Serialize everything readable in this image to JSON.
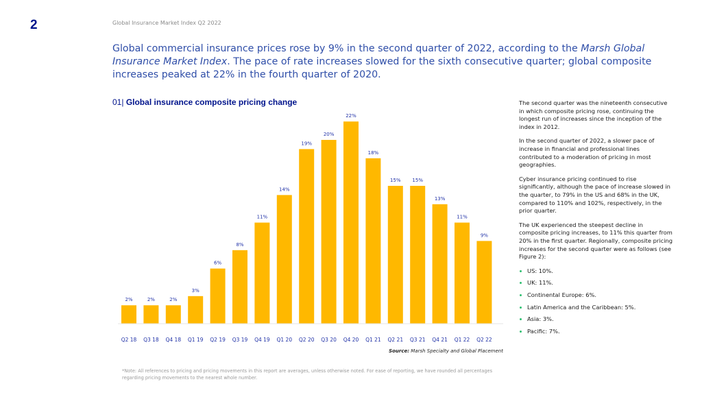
{
  "page": {
    "number": "2",
    "running_head": "Global Insurance Market Index Q2 2022",
    "lead": {
      "part1": "Global commercial insurance prices rose by 9% in the second quarter of 2022, according to the ",
      "italic": "Marsh Global Insurance Market Index",
      "part2": ". The pace of rate increases slowed for the sixth consecutive quarter; global composite increases peaked at 22% in the fourth quarter of 2020."
    },
    "figure": {
      "number": "01|",
      "title": "Global insurance composite pricing change",
      "source_label": "Source:",
      "source_text": " Marsh Specialty and Global Placement"
    },
    "sidebar": {
      "paragraphs": [
        "The second quarter was the nineteenth consecutive in which composite pricing rose, continuing the longest run of increases since the inception of the index in 2012.",
        "In the second quarter of 2022, a slower pace of increase in financial and professional lines contributed to a moderation of pricing in most geographies.",
        "Cyber insurance pricing continued to rise significantly, although the pace of increase slowed in the quarter, to 79% in the US and 68% in the UK, compared to 110% and 102%, respectively, in the prior quarter.",
        "The UK experienced the steepest decline in composite pricing increases, to 11% this quarter from 20% in the first quarter. Regionally, composite pricing increases for the second quarter were as follows (see Figure 2):"
      ],
      "bullets": [
        "US: 10%.",
        "UK: 11%.",
        "Continental Europe: 6%.",
        "Latin America and the Caribbean: 5%.",
        "Asia: 3%.",
        "Pacific: 7%."
      ]
    },
    "footnote": "*Note: All references to pricing and pricing movements in this report are averages, unless otherwise noted. For ease of reporting, we have rounded all percentages regarding pricing movements to the nearest whole number."
  },
  "colors": {
    "bar": "#FFB800",
    "label": "#2233a8",
    "title": "#00148c",
    "bullet": "#2fbf71"
  },
  "chart_data": {
    "type": "bar",
    "title": "Global insurance composite pricing change",
    "xlabel": "",
    "ylabel": "",
    "categories": [
      "Q2 18",
      "Q3 18",
      "Q4 18",
      "Q1 19",
      "Q2 19",
      "Q3 19",
      "Q4 19",
      "Q1 20",
      "Q2 20",
      "Q3 20",
      "Q4 20",
      "Q1 21",
      "Q2 21",
      "Q3 21",
      "Q4 21",
      "Q1 22",
      "Q2 22"
    ],
    "values": [
      2,
      2,
      2,
      3,
      6,
      8,
      11,
      14,
      19,
      20,
      22,
      18,
      15,
      15,
      13,
      11,
      9
    ],
    "data_labels": [
      "2%",
      "2%",
      "2%",
      "3%",
      "6%",
      "8%",
      "11%",
      "14%",
      "19%",
      "20%",
      "22%",
      "18%",
      "15%",
      "15%",
      "13%",
      "11%",
      "9%"
    ],
    "ylim": [
      0,
      23
    ],
    "grid": false,
    "legend": "none",
    "source": "Source: Marsh Specialty and Global Placement"
  }
}
